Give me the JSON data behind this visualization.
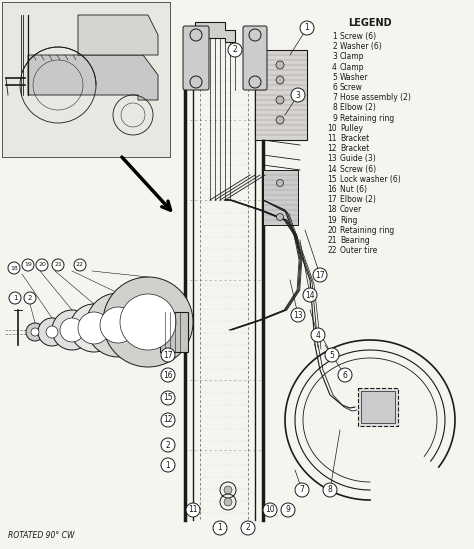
{
  "background_color": "#f5f5f0",
  "line_color": "#1a1a1a",
  "legend_title": "LEGEND",
  "legend_items": [
    [
      1,
      "Screw (6)"
    ],
    [
      2,
      "Washer (6)"
    ],
    [
      3,
      "Clamp"
    ],
    [
      4,
      "Clamp"
    ],
    [
      5,
      "Washer"
    ],
    [
      6,
      "Screw"
    ],
    [
      7,
      "Hose assembly (2)"
    ],
    [
      8,
      "Elbow (2)"
    ],
    [
      9,
      "Retaining ring"
    ],
    [
      10,
      "Pulley"
    ],
    [
      11,
      "Bracket"
    ],
    [
      12,
      "Bracket"
    ],
    [
      13,
      "Guide (3)"
    ],
    [
      14,
      "Screw (6)"
    ],
    [
      15,
      "Lock washer (6)"
    ],
    [
      16,
      "Nut (6)"
    ],
    [
      17,
      "Elbow (2)"
    ],
    [
      18,
      "Cover"
    ],
    [
      19,
      "Ring"
    ],
    [
      20,
      "Retaining ring"
    ],
    [
      21,
      "Bearing"
    ],
    [
      22,
      "Outer tire"
    ]
  ],
  "rotated_label": "ROTATED 90° CW",
  "fig_width": 4.74,
  "fig_height": 5.49,
  "dpi": 100
}
